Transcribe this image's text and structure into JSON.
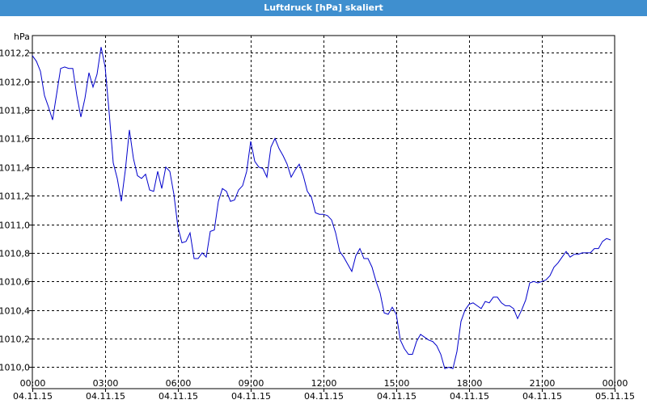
{
  "window": {
    "title": "Luftdruck [hPa] skaliert"
  },
  "chart_data": {
    "type": "line",
    "title": "Luftdruck [hPa] skaliert",
    "unit_label": "hPa",
    "ylim": [
      1009.85,
      1012.32
    ],
    "y_ticks": [
      {
        "value": 1010.0,
        "label": "1010,0"
      },
      {
        "value": 1010.2,
        "label": "1010,2"
      },
      {
        "value": 1010.4,
        "label": "1010,4"
      },
      {
        "value": 1010.6,
        "label": "1010,6"
      },
      {
        "value": 1010.8,
        "label": "1010,8"
      },
      {
        "value": 1011.0,
        "label": "1011,0"
      },
      {
        "value": 1011.2,
        "label": "1011,2"
      },
      {
        "value": 1011.4,
        "label": "1011,4"
      },
      {
        "value": 1011.6,
        "label": "1011,6"
      },
      {
        "value": 1011.8,
        "label": "1011,8"
      },
      {
        "value": 1012.0,
        "label": "1012,0"
      },
      {
        "value": 1012.2,
        "label": "1012,2"
      }
    ],
    "xlim": [
      "04.11.15 00:00",
      "05.11.15 00:00"
    ],
    "x_ticks": [
      {
        "time": "00:00",
        "date": "04.11.15"
      },
      {
        "time": "03:00",
        "date": "04.11.15"
      },
      {
        "time": "06:00",
        "date": "04.11.15"
      },
      {
        "time": "09:00",
        "date": "04.11.15"
      },
      {
        "time": "12:00",
        "date": "04.11.15"
      },
      {
        "time": "15:00",
        "date": "04.11.15"
      },
      {
        "time": "18:00",
        "date": "04.11.15"
      },
      {
        "time": "21:00",
        "date": "04.11.15"
      },
      {
        "time": "00:00",
        "date": "05.11.15"
      }
    ],
    "grid": true,
    "line_color": "#0000cc",
    "series": [
      {
        "x": [
          "00:00",
          "00:10",
          "00:20",
          "00:30",
          "00:40",
          "00:50",
          "01:00",
          "01:10",
          "01:20",
          "01:30",
          "01:40",
          "01:50",
          "02:00",
          "02:10",
          "02:20",
          "02:30",
          "02:40",
          "02:50",
          "03:00",
          "03:10",
          "03:20",
          "03:30",
          "03:40",
          "03:50",
          "04:00",
          "04:10",
          "04:20",
          "04:30",
          "04:40",
          "04:50",
          "05:00",
          "05:10",
          "05:20",
          "05:30",
          "05:40",
          "05:50",
          "06:00",
          "06:10",
          "06:20",
          "06:30",
          "06:40",
          "06:50",
          "07:00",
          "07:10",
          "07:20",
          "07:30",
          "07:40",
          "07:50",
          "08:00",
          "08:10",
          "08:20",
          "08:30",
          "08:40",
          "08:50",
          "09:00",
          "09:10",
          "09:20",
          "09:30",
          "09:40",
          "09:50",
          "10:00",
          "10:10",
          "10:20",
          "10:30",
          "10:40",
          "10:50",
          "11:00",
          "11:10",
          "11:20",
          "11:30",
          "11:40",
          "11:50",
          "12:00",
          "12:10",
          "12:20",
          "12:30",
          "12:40",
          "12:50",
          "13:00",
          "13:10",
          "13:20",
          "13:30",
          "13:40",
          "13:50",
          "14:00",
          "14:10",
          "14:20",
          "14:30",
          "14:40",
          "14:50",
          "15:00",
          "15:10",
          "15:20",
          "15:30",
          "15:40",
          "15:50",
          "16:00",
          "16:10",
          "16:20",
          "16:30",
          "16:40",
          "16:50",
          "17:00",
          "17:10",
          "17:20",
          "17:30",
          "17:40",
          "17:50",
          "18:00",
          "18:10",
          "18:20",
          "18:30",
          "18:40",
          "18:50",
          "19:00",
          "19:10",
          "19:20",
          "19:30",
          "19:40",
          "19:50",
          "20:00",
          "20:10",
          "20:20",
          "20:30",
          "20:40",
          "20:50",
          "21:00",
          "21:10",
          "21:20",
          "21:30",
          "21:40",
          "21:50",
          "22:00",
          "22:10",
          "22:20",
          "22:30",
          "22:40",
          "22:50",
          "23:00",
          "23:10",
          "23:20",
          "23:30",
          "23:40",
          "23:50"
        ],
        "y": [
          1012.18,
          1012.14,
          1012.07,
          1011.9,
          1011.82,
          1011.73,
          1011.91,
          1012.09,
          1012.1,
          1012.09,
          1012.09,
          1011.9,
          1011.75,
          1011.88,
          1012.06,
          1011.96,
          1012.05,
          1012.24,
          1012.1,
          1011.78,
          1011.43,
          1011.32,
          1011.16,
          1011.38,
          1011.66,
          1011.46,
          1011.34,
          1011.32,
          1011.35,
          1011.24,
          1011.23,
          1011.37,
          1011.25,
          1011.4,
          1011.37,
          1011.21,
          1010.98,
          1010.87,
          1010.88,
          1010.94,
          1010.76,
          1010.76,
          1010.8,
          1010.77,
          1010.95,
          1010.96,
          1011.16,
          1011.25,
          1011.23,
          1011.16,
          1011.17,
          1011.24,
          1011.27,
          1011.37,
          1011.58,
          1011.44,
          1011.4,
          1011.39,
          1011.33,
          1011.54,
          1011.6,
          1011.53,
          1011.48,
          1011.42,
          1011.33,
          1011.38,
          1011.42,
          1011.34,
          1011.23,
          1011.19,
          1011.08,
          1011.07,
          1011.07,
          1011.06,
          1011.03,
          1010.94,
          1010.81,
          1010.77,
          1010.72,
          1010.67,
          1010.78,
          1010.83,
          1010.76,
          1010.76,
          1010.7,
          1010.6,
          1010.52,
          1010.38,
          1010.37,
          1010.42,
          1010.37,
          1010.19,
          1010.13,
          1010.09,
          1010.09,
          1010.18,
          1010.23,
          1010.21,
          1010.19,
          1010.18,
          1010.15,
          1010.09,
          1009.99,
          1010.0,
          1009.99,
          1010.11,
          1010.32,
          1010.4,
          1010.44,
          1010.45,
          1010.43,
          1010.41,
          1010.46,
          1010.45,
          1010.49,
          1010.49,
          1010.45,
          1010.43,
          1010.43,
          1010.41,
          1010.34,
          1010.4,
          1010.47,
          1010.59,
          1010.6,
          1010.59,
          1010.6,
          1010.61,
          1010.64,
          1010.7,
          1010.73,
          1010.77,
          1010.81,
          1010.77,
          1010.79,
          1010.79,
          1010.8,
          1010.8,
          1010.8,
          1010.83,
          1010.83,
          1010.88,
          1010.9,
          1010.89
        ]
      }
    ]
  }
}
